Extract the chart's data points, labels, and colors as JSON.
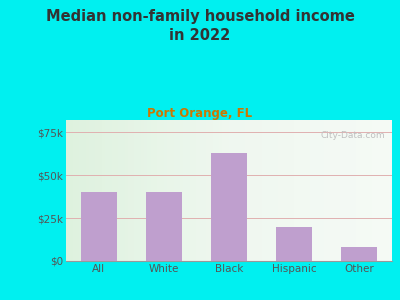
{
  "title": "Median non-family household income\nin 2022",
  "subtitle": "Port Orange, FL",
  "categories": [
    "All",
    "White",
    "Black",
    "Hispanic",
    "Other"
  ],
  "values": [
    40000,
    40000,
    63000,
    20000,
    8000
  ],
  "bar_color": "#bf9fce",
  "title_color": "#333333",
  "subtitle_color": "#cc7700",
  "tick_color": "#555555",
  "background_outer": "#00f0f0",
  "background_plot": "#e8f5e9",
  "grid_color": "#e0b0b0",
  "yticks": [
    0,
    25000,
    50000,
    75000
  ],
  "ytick_labels": [
    "$0",
    "$25k",
    "$50k",
    "$75k"
  ],
  "ylim": [
    0,
    82000
  ],
  "watermark": "City-Data.com",
  "watermark_color": "#c0c0c0"
}
